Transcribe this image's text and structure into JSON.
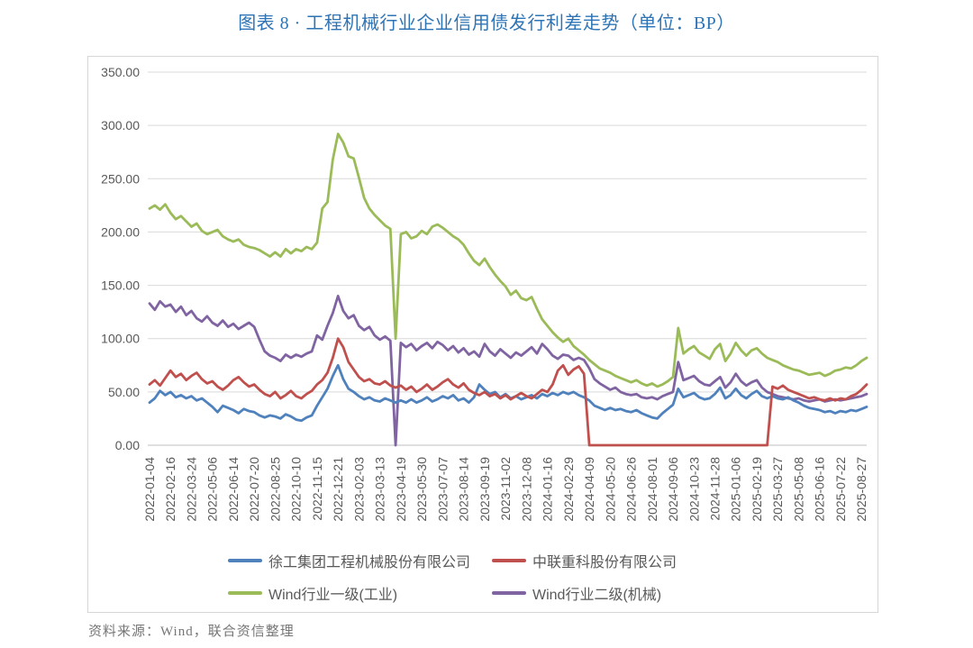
{
  "page": {
    "title": "图表 8 · 工程机械行业企业信用债发行利差走势（单位：BP）",
    "source_note": "资料来源：Wind，联合资信整理"
  },
  "chart_data": {
    "type": "line",
    "title": "工程机械行业企业信用债发行利差走势",
    "unit": "BP",
    "grid": true,
    "legend_position": "bottom",
    "y_axis": {
      "min": 0,
      "max": 350,
      "tick_step": 50,
      "tick_labels": [
        "350.00",
        "300.00",
        "250.00",
        "200.00",
        "150.00",
        "100.00",
        "50.00",
        "0.00"
      ]
    },
    "x_tick_labels": [
      "2022-01-04",
      "2022-02-16",
      "2022-03-24",
      "2022-05-06",
      "2022-06-14",
      "2022-07-20",
      "2022-08-25",
      "2022-10-10",
      "2022-11-15",
      "2022-12-21",
      "2023-02-03",
      "2023-03-13",
      "2023-04-19",
      "2023-05-30",
      "2023-07-07",
      "2023-08-14",
      "2023-09-19",
      "2023-11-02",
      "2023-12-08",
      "2024-01-16",
      "2024-02-29",
      "2024-04-09",
      "2024-05-20",
      "2024-06-26",
      "2024-08-01",
      "2024-09-06",
      "2024-10-23",
      "2024-11-28",
      "2025-01-06",
      "2025-02-19",
      "2025-03-27",
      "2025-05-08",
      "2025-06-16",
      "2025-07-22",
      "2025-08-27"
    ],
    "points_per_tick": 4,
    "series": [
      {
        "key": "xugong",
        "name": "徐工集团工程机械股份有限公司",
        "color": "#4F81BD",
        "values": [
          40,
          44,
          51,
          47,
          50,
          45,
          47,
          44,
          46,
          42,
          44,
          40,
          36,
          31,
          37,
          35,
          33,
          30,
          34,
          32,
          31,
          28,
          26,
          28,
          27,
          25,
          29,
          27,
          24,
          23,
          26,
          28,
          37,
          45,
          53,
          65,
          75,
          62,
          53,
          50,
          46,
          43,
          45,
          42,
          41,
          44,
          42,
          40,
          42,
          40,
          43,
          40,
          42,
          45,
          41,
          43,
          46,
          44,
          47,
          42,
          44,
          40,
          45,
          57,
          52,
          48,
          50,
          45,
          48,
          44,
          46,
          43,
          45,
          47,
          44,
          48,
          46,
          49,
          47,
          50,
          48,
          50,
          47,
          45,
          42,
          37,
          35,
          33,
          35,
          33,
          34,
          32,
          31,
          33,
          30,
          28,
          26,
          25,
          30,
          34,
          38,
          53,
          45,
          47,
          49,
          45,
          43,
          44,
          48,
          54,
          44,
          47,
          53,
          47,
          44,
          48,
          51,
          46,
          44,
          46,
          44,
          43,
          45,
          42,
          40,
          37,
          35,
          34,
          33,
          31,
          32,
          30,
          32,
          31,
          33,
          32,
          34,
          36
        ]
      },
      {
        "key": "zoomlion",
        "name": "中联重科股份有限公司",
        "color": "#C0504D",
        "values": [
          57,
          61,
          56,
          63,
          70,
          64,
          67,
          61,
          65,
          68,
          62,
          58,
          60,
          55,
          52,
          56,
          61,
          64,
          59,
          55,
          57,
          52,
          48,
          46,
          50,
          44,
          47,
          51,
          46,
          44,
          48,
          51,
          57,
          61,
          68,
          82,
          100,
          92,
          78,
          71,
          64,
          60,
          62,
          58,
          57,
          60,
          56,
          54,
          56,
          52,
          55,
          50,
          53,
          57,
          52,
          55,
          59,
          62,
          57,
          54,
          58,
          52,
          49,
          47,
          50,
          46,
          48,
          44,
          47,
          43,
          46,
          49,
          46,
          44,
          48,
          52,
          50,
          57,
          70,
          75,
          66,
          71,
          74,
          67,
          0,
          0,
          0,
          0,
          0,
          0,
          0,
          0,
          0,
          0,
          0,
          0,
          0,
          0,
          0,
          0,
          0,
          0,
          0,
          0,
          0,
          0,
          0,
          0,
          0,
          0,
          0,
          0,
          0,
          0,
          0,
          0,
          0,
          0,
          0,
          55,
          53,
          56,
          52,
          50,
          48,
          46,
          44,
          45,
          43,
          42,
          44,
          42,
          44,
          43,
          46,
          48,
          52,
          57
        ]
      },
      {
        "key": "wind-industry-l1",
        "name": "Wind行业一级(工业)",
        "color": "#9BBB59",
        "values": [
          222,
          225,
          221,
          226,
          218,
          212,
          215,
          210,
          205,
          208,
          201,
          198,
          200,
          202,
          196,
          193,
          191,
          193,
          188,
          186,
          185,
          183,
          180,
          177,
          181,
          177,
          184,
          180,
          184,
          182,
          186,
          184,
          190,
          222,
          228,
          268,
          292,
          284,
          271,
          269,
          251,
          232,
          222,
          216,
          211,
          206,
          203,
          100,
          198,
          200,
          194,
          196,
          201,
          198,
          205,
          207,
          204,
          200,
          196,
          193,
          188,
          180,
          173,
          169,
          175,
          167,
          160,
          154,
          149,
          141,
          145,
          138,
          136,
          139,
          128,
          118,
          112,
          106,
          101,
          97,
          100,
          93,
          89,
          85,
          80,
          76,
          72,
          70,
          68,
          65,
          63,
          61,
          59,
          61,
          58,
          56,
          58,
          55,
          57,
          60,
          64,
          110,
          86,
          90,
          93,
          87,
          84,
          81,
          90,
          95,
          79,
          86,
          96,
          89,
          84,
          89,
          91,
          86,
          82,
          80,
          78,
          75,
          73,
          71,
          70,
          68,
          66,
          67,
          68,
          65,
          67,
          70,
          71,
          73,
          72,
          75,
          79,
          82
        ]
      },
      {
        "key": "wind-machinery-l2",
        "name": "Wind行业二级(机械)",
        "color": "#8064A2",
        "values": [
          133,
          127,
          135,
          130,
          132,
          125,
          130,
          122,
          126,
          119,
          116,
          121,
          115,
          112,
          117,
          111,
          114,
          109,
          112,
          115,
          111,
          99,
          88,
          84,
          82,
          79,
          85,
          82,
          85,
          83,
          86,
          88,
          103,
          99,
          112,
          124,
          140,
          126,
          119,
          122,
          112,
          108,
          111,
          103,
          99,
          102,
          98,
          0,
          96,
          92,
          95,
          89,
          93,
          96,
          91,
          97,
          94,
          89,
          93,
          87,
          91,
          85,
          88,
          83,
          95,
          88,
          84,
          90,
          86,
          82,
          87,
          84,
          88,
          92,
          86,
          95,
          90,
          84,
          81,
          85,
          84,
          80,
          82,
          80,
          72,
          62,
          58,
          55,
          52,
          54,
          50,
          48,
          47,
          48,
          45,
          44,
          45,
          43,
          46,
          48,
          50,
          78,
          61,
          63,
          65,
          60,
          57,
          56,
          60,
          64,
          54,
          59,
          67,
          60,
          56,
          59,
          61,
          54,
          50,
          48,
          46,
          45,
          44,
          43,
          44,
          42,
          41,
          42,
          43,
          41,
          42,
          43,
          42,
          43,
          44,
          45,
          46,
          48
        ]
      }
    ]
  }
}
